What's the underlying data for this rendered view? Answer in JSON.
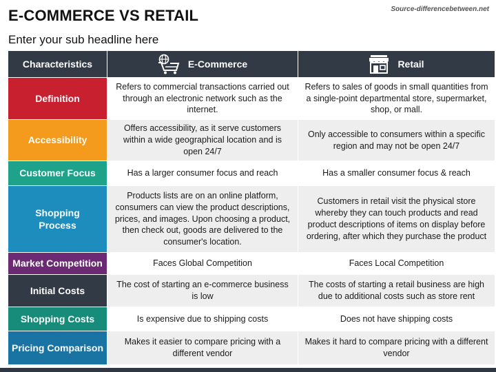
{
  "title": "E-COMMERCE VS RETAIL",
  "source": "Source-differencebetween.net",
  "subtitle": "Enter your sub headline here",
  "headers": {
    "characteristics": "Characteristics",
    "ecommerce": "E-Commerce",
    "retail": "Retail",
    "ecommerce_icon": "shopping-cart-globe-icon",
    "retail_icon": "storefront-icon"
  },
  "rows": [
    {
      "label": "Definition",
      "color": "#c8202f",
      "ecommerce": "Refers to commercial transactions carried out through an electronic network such as the internet.",
      "retail": "Refers to sales of goods in small quantities from a single-point departmental store, supermarket, shop, or mall."
    },
    {
      "label": "Accessibility",
      "color": "#f49a1c",
      "ecommerce": "Offers accessibility, as it serve customers within a wide geographical location and is open 24/7",
      "retail": "Only accessible to consumers within a specific region and may not be open 24/7"
    },
    {
      "label": "Customer Focus",
      "color": "#1fa28a",
      "ecommerce": "Has a larger consumer focus and reach",
      "retail": "Has a smaller consumer focus & reach"
    },
    {
      "label": "Shopping Process",
      "color": "#1c8dbd",
      "ecommerce": "Products lists are on an online platform, consumers can view the product descriptions, prices, and images. Upon choosing a product, then check out, goods are delivered to the consumer's location.",
      "retail": "Customers in retail visit the physical store whereby they can touch products and read product descriptions of items on display before ordering, after which they purchase the product"
    },
    {
      "label": "Market Competition",
      "color": "#6b2a73",
      "ecommerce": "Faces Global Competition",
      "retail": "Faces Local Competition"
    },
    {
      "label": "Initial Costs",
      "color": "#323a45",
      "ecommerce": "The cost of starting an e-commerce business is low",
      "retail": "The costs of starting a retail business are high due to additional costs such as store rent"
    },
    {
      "label": "Shopping Costs",
      "color": "#188c7b",
      "ecommerce": "Is expensive due to shipping costs",
      "retail": "Does not have shipping costs"
    },
    {
      "label": "Pricing Comparison",
      "color": "#1973a3",
      "ecommerce": "Makes it easier to compare pricing with a different vendor",
      "retail": "Makes it hard to compare pricing with a different vendor"
    }
  ]
}
